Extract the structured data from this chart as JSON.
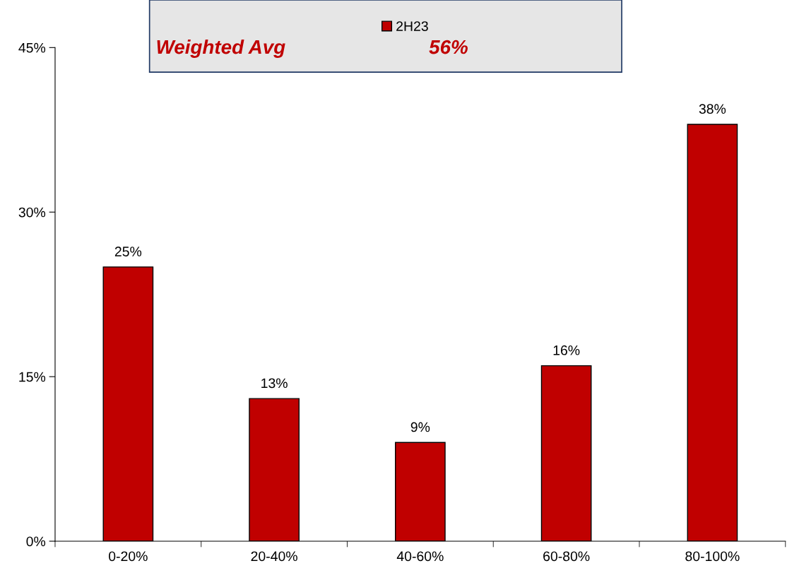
{
  "chart_data": {
    "type": "bar",
    "categories": [
      "0-20%",
      "20-40%",
      "40-60%",
      "60-80%",
      "80-100%"
    ],
    "series": [
      {
        "name": "2H23",
        "color": "#c00000",
        "values": [
          25,
          13,
          9,
          16,
          38
        ],
        "value_labels": [
          "25%",
          "13%",
          "9%",
          "16%",
          "38%"
        ]
      }
    ],
    "ylim": [
      0,
      45
    ],
    "yticks": [
      {
        "value": 0,
        "label": "0%"
      },
      {
        "value": 15,
        "label": "15%"
      },
      {
        "value": 30,
        "label": "30%"
      },
      {
        "value": 45,
        "label": "45%"
      }
    ],
    "grid": false,
    "legend": "top",
    "annotations": [
      "Weighted Avg",
      "56%"
    ]
  }
}
